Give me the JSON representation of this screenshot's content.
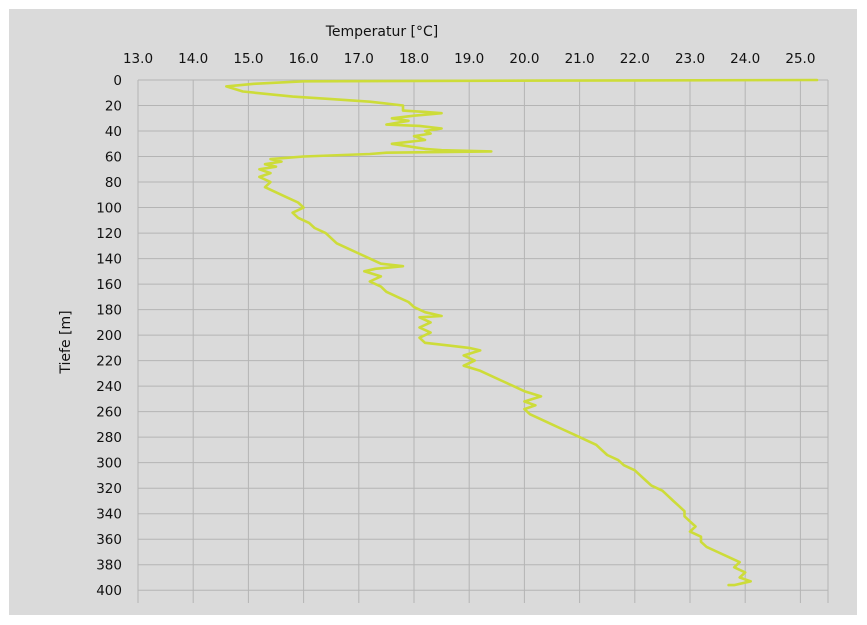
{
  "chart_data": {
    "type": "line",
    "xlabel": "Temperatur [°C]",
    "ylabel": "Tiefe [m]",
    "x_axis_position": "top",
    "y_axis_inverted": true,
    "xlim": [
      13.0,
      25.5
    ],
    "ylim": [
      0,
      410
    ],
    "grid": true,
    "x_ticks": [
      "13.0",
      "14.0",
      "15.0",
      "16.0",
      "17.0",
      "18.0",
      "19.0",
      "20.0",
      "21.0",
      "22.0",
      "23.0",
      "24.0",
      "25.0"
    ],
    "y_ticks": [
      "0",
      "20",
      "40",
      "60",
      "80",
      "100",
      "120",
      "140",
      "160",
      "180",
      "200",
      "220",
      "240",
      "260",
      "280",
      "300",
      "320",
      "340",
      "360",
      "380",
      "400"
    ],
    "colors": {
      "series": "#cddc39",
      "grid": "#b4b4b4",
      "background": "#dadada"
    },
    "series": [
      {
        "points": [
          [
            25.3,
            0
          ],
          [
            20.5,
            0.5
          ],
          [
            16.0,
            1
          ],
          [
            15.1,
            3
          ],
          [
            14.6,
            5
          ],
          [
            14.9,
            9
          ],
          [
            15.8,
            13
          ],
          [
            16.5,
            15
          ],
          [
            17.2,
            17
          ],
          [
            17.8,
            20
          ],
          [
            17.8,
            24
          ],
          [
            18.2,
            25
          ],
          [
            18.5,
            26
          ],
          [
            18.0,
            28
          ],
          [
            17.6,
            30
          ],
          [
            17.9,
            32
          ],
          [
            17.5,
            35
          ],
          [
            18.1,
            36
          ],
          [
            18.5,
            38
          ],
          [
            18.2,
            40
          ],
          [
            18.3,
            42
          ],
          [
            18.0,
            44
          ],
          [
            18.2,
            47
          ],
          [
            17.6,
            50
          ],
          [
            17.9,
            52
          ],
          [
            18.2,
            54
          ],
          [
            18.5,
            55
          ],
          [
            19.4,
            56
          ],
          [
            17.5,
            57
          ],
          [
            17.2,
            58
          ],
          [
            16.0,
            60
          ],
          [
            15.7,
            61
          ],
          [
            15.4,
            62
          ],
          [
            15.6,
            64
          ],
          [
            15.3,
            66
          ],
          [
            15.5,
            68
          ],
          [
            15.2,
            70
          ],
          [
            15.4,
            73
          ],
          [
            15.2,
            76
          ],
          [
            15.4,
            80
          ],
          [
            15.3,
            84
          ],
          [
            15.5,
            88
          ],
          [
            15.7,
            92
          ],
          [
            15.9,
            96
          ],
          [
            16.0,
            100
          ],
          [
            15.8,
            104
          ],
          [
            15.9,
            108
          ],
          [
            16.1,
            112
          ],
          [
            16.2,
            116
          ],
          [
            16.4,
            120
          ],
          [
            16.5,
            124
          ],
          [
            16.6,
            128
          ],
          [
            16.8,
            132
          ],
          [
            17.0,
            136
          ],
          [
            17.2,
            140
          ],
          [
            17.4,
            144
          ],
          [
            17.8,
            146
          ],
          [
            17.3,
            148
          ],
          [
            17.1,
            150
          ],
          [
            17.4,
            154
          ],
          [
            17.2,
            158
          ],
          [
            17.4,
            162
          ],
          [
            17.5,
            166
          ],
          [
            17.7,
            170
          ],
          [
            17.9,
            174
          ],
          [
            18.0,
            178
          ],
          [
            18.2,
            182
          ],
          [
            18.5,
            185
          ],
          [
            18.1,
            186
          ],
          [
            18.3,
            190
          ],
          [
            18.1,
            194
          ],
          [
            18.3,
            198
          ],
          [
            18.1,
            202
          ],
          [
            18.2,
            206
          ],
          [
            18.6,
            208
          ],
          [
            19.0,
            210
          ],
          [
            19.2,
            212
          ],
          [
            18.9,
            216
          ],
          [
            19.1,
            220
          ],
          [
            18.9,
            224
          ],
          [
            19.2,
            228
          ],
          [
            19.4,
            232
          ],
          [
            19.6,
            236
          ],
          [
            19.8,
            240
          ],
          [
            20.0,
            244
          ],
          [
            20.3,
            248
          ],
          [
            20.0,
            252
          ],
          [
            20.2,
            255
          ],
          [
            20.0,
            258
          ],
          [
            20.1,
            262
          ],
          [
            20.3,
            266
          ],
          [
            20.5,
            270
          ],
          [
            20.7,
            274
          ],
          [
            20.9,
            278
          ],
          [
            21.1,
            282
          ],
          [
            21.3,
            286
          ],
          [
            21.4,
            290
          ],
          [
            21.5,
            294
          ],
          [
            21.7,
            298
          ],
          [
            21.8,
            302
          ],
          [
            22.0,
            306
          ],
          [
            22.1,
            310
          ],
          [
            22.2,
            314
          ],
          [
            22.3,
            318
          ],
          [
            22.5,
            322
          ],
          [
            22.6,
            326
          ],
          [
            22.7,
            330
          ],
          [
            22.8,
            334
          ],
          [
            22.9,
            338
          ],
          [
            22.9,
            342
          ],
          [
            23.0,
            346
          ],
          [
            23.1,
            350
          ],
          [
            23.0,
            354
          ],
          [
            23.2,
            358
          ],
          [
            23.2,
            362
          ],
          [
            23.3,
            366
          ],
          [
            23.5,
            370
          ],
          [
            23.7,
            374
          ],
          [
            23.9,
            378
          ],
          [
            23.8,
            382
          ],
          [
            24.0,
            386
          ],
          [
            23.9,
            390
          ],
          [
            24.1,
            393
          ],
          [
            23.8,
            396
          ],
          [
            23.7,
            396
          ]
        ]
      }
    ]
  }
}
